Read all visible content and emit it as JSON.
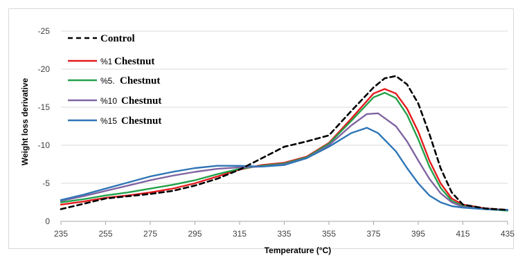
{
  "chart_data": {
    "type": "line",
    "xlabel": "Temperature (°C)",
    "ylabel": "Weight loss derivative",
    "xlim": [
      235,
      435
    ],
    "ylim": [
      0,
      -25
    ],
    "y_reversed": true,
    "x_ticks": [
      "235",
      "255",
      "275",
      "295",
      "315",
      "335",
      "355",
      "375",
      "395",
      "415",
      "435"
    ],
    "y_ticks": [
      "0",
      "-5",
      "-10",
      "-15",
      "-20",
      "-25"
    ],
    "grid": "horizontal",
    "legend_position": "top-left",
    "series": [
      {
        "name": "Control",
        "prefix": "",
        "label": "Control",
        "color": "#000000",
        "dash": true,
        "points": [
          [
            235,
            -1.6
          ],
          [
            245,
            -2.3
          ],
          [
            255,
            -3.0
          ],
          [
            265,
            -3.3
          ],
          [
            275,
            -3.6
          ],
          [
            285,
            -4.0
          ],
          [
            295,
            -4.7
          ],
          [
            305,
            -5.6
          ],
          [
            315,
            -6.8
          ],
          [
            325,
            -8.3
          ],
          [
            335,
            -9.8
          ],
          [
            345,
            -10.5
          ],
          [
            355,
            -11.3
          ],
          [
            365,
            -14.5
          ],
          [
            375,
            -17.6
          ],
          [
            380,
            -18.8
          ],
          [
            385,
            -19.1
          ],
          [
            390,
            -18.0
          ],
          [
            395,
            -15.5
          ],
          [
            400,
            -11.5
          ],
          [
            405,
            -7.0
          ],
          [
            410,
            -3.8
          ],
          [
            415,
            -2.2
          ],
          [
            425,
            -1.7
          ],
          [
            435,
            -1.5
          ]
        ]
      },
      {
        "name": "%1 Chestnut",
        "prefix": "%1",
        "label": "Chestnut",
        "color": "#e31a1c",
        "dash": false,
        "points": [
          [
            235,
            -2.2
          ],
          [
            245,
            -2.6
          ],
          [
            255,
            -3.1
          ],
          [
            265,
            -3.4
          ],
          [
            275,
            -3.8
          ],
          [
            285,
            -4.3
          ],
          [
            295,
            -5.0
          ],
          [
            305,
            -5.9
          ],
          [
            315,
            -6.8
          ],
          [
            325,
            -7.4
          ],
          [
            335,
            -7.7
          ],
          [
            345,
            -8.5
          ],
          [
            355,
            -10.3
          ],
          [
            365,
            -13.5
          ],
          [
            375,
            -16.8
          ],
          [
            380,
            -17.4
          ],
          [
            385,
            -16.8
          ],
          [
            390,
            -14.8
          ],
          [
            395,
            -11.8
          ],
          [
            400,
            -8.0
          ],
          [
            405,
            -5.0
          ],
          [
            410,
            -3.0
          ],
          [
            415,
            -2.2
          ],
          [
            425,
            -1.7
          ],
          [
            435,
            -1.5
          ]
        ]
      },
      {
        "name": "%5. Chestnut",
        "prefix": "%5.",
        "label": "Chestnut",
        "color": "#22a14a",
        "dash": false,
        "points": [
          [
            235,
            -2.5
          ],
          [
            245,
            -2.9
          ],
          [
            255,
            -3.4
          ],
          [
            265,
            -3.8
          ],
          [
            275,
            -4.3
          ],
          [
            285,
            -4.8
          ],
          [
            295,
            -5.4
          ],
          [
            305,
            -6.2
          ],
          [
            315,
            -6.9
          ],
          [
            325,
            -7.3
          ],
          [
            335,
            -7.6
          ],
          [
            345,
            -8.4
          ],
          [
            355,
            -10.2
          ],
          [
            365,
            -13.2
          ],
          [
            375,
            -16.3
          ],
          [
            380,
            -16.9
          ],
          [
            385,
            -16.2
          ],
          [
            390,
            -14.0
          ],
          [
            395,
            -10.8
          ],
          [
            400,
            -7.2
          ],
          [
            405,
            -4.4
          ],
          [
            410,
            -2.7
          ],
          [
            415,
            -2.0
          ],
          [
            425,
            -1.6
          ],
          [
            435,
            -1.4
          ]
        ]
      },
      {
        "name": "%10 Chestnut",
        "prefix": "%10",
        "label": "Chestnut",
        "color": "#8064a2",
        "dash": false,
        "points": [
          [
            235,
            -2.7
          ],
          [
            245,
            -3.3
          ],
          [
            255,
            -4.0
          ],
          [
            265,
            -4.7
          ],
          [
            275,
            -5.4
          ],
          [
            285,
            -6.0
          ],
          [
            295,
            -6.5
          ],
          [
            305,
            -6.9
          ],
          [
            315,
            -7.1
          ],
          [
            325,
            -7.2
          ],
          [
            335,
            -7.5
          ],
          [
            345,
            -8.3
          ],
          [
            355,
            -10.0
          ],
          [
            365,
            -12.6
          ],
          [
            372,
            -14.1
          ],
          [
            377,
            -14.2
          ],
          [
            385,
            -12.5
          ],
          [
            390,
            -10.5
          ],
          [
            395,
            -8.0
          ],
          [
            400,
            -5.6
          ],
          [
            405,
            -3.7
          ],
          [
            410,
            -2.5
          ],
          [
            415,
            -1.9
          ],
          [
            425,
            -1.6
          ],
          [
            435,
            -1.5
          ]
        ]
      },
      {
        "name": "%15 Chestnut",
        "prefix": "%15",
        "label": "Chestnut",
        "color": "#2e75b6",
        "dash": false,
        "points": [
          [
            235,
            -2.8
          ],
          [
            245,
            -3.5
          ],
          [
            255,
            -4.3
          ],
          [
            265,
            -5.1
          ],
          [
            275,
            -5.9
          ],
          [
            285,
            -6.5
          ],
          [
            295,
            -7.0
          ],
          [
            305,
            -7.3
          ],
          [
            315,
            -7.3
          ],
          [
            325,
            -7.2
          ],
          [
            335,
            -7.4
          ],
          [
            345,
            -8.3
          ],
          [
            355,
            -9.8
          ],
          [
            365,
            -11.6
          ],
          [
            372,
            -12.3
          ],
          [
            377,
            -11.6
          ],
          [
            385,
            -9.2
          ],
          [
            390,
            -7.0
          ],
          [
            395,
            -5.0
          ],
          [
            400,
            -3.4
          ],
          [
            405,
            -2.5
          ],
          [
            410,
            -2.0
          ],
          [
            415,
            -1.8
          ],
          [
            425,
            -1.6
          ],
          [
            435,
            -1.5
          ]
        ]
      }
    ]
  }
}
